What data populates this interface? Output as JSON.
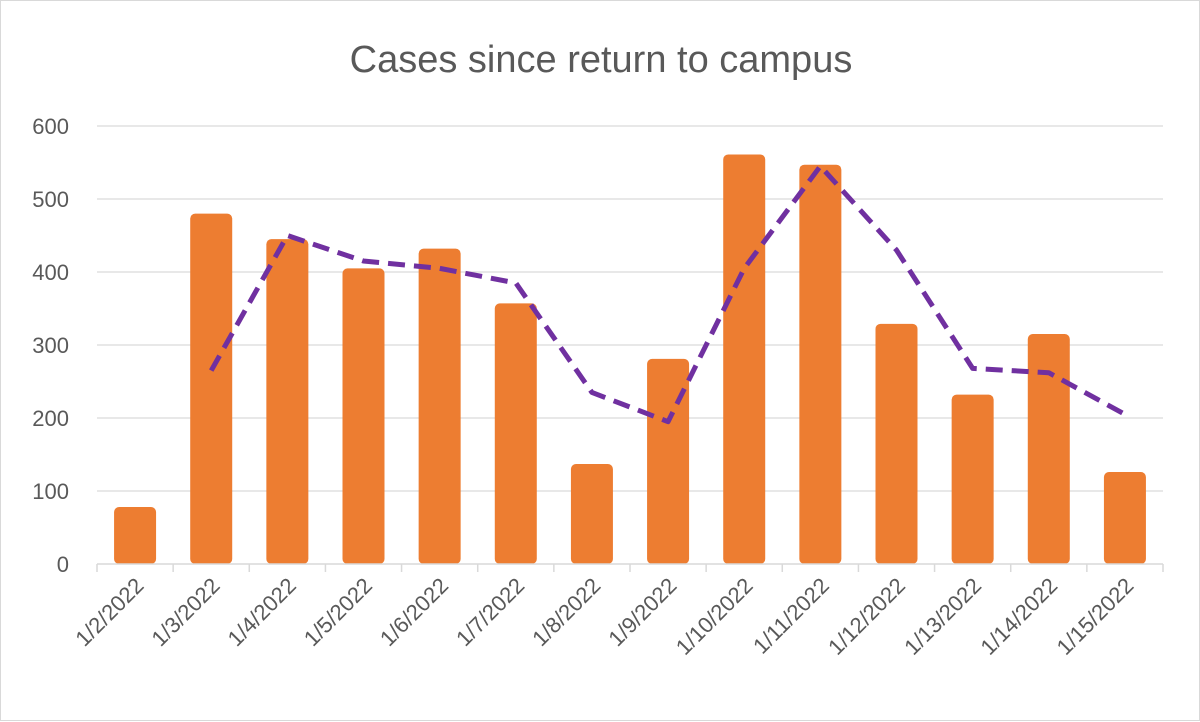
{
  "chart_data": {
    "type": "bar",
    "title": "Cases since return to campus",
    "xlabel": "",
    "ylabel": "",
    "categories": [
      "1/2/2022",
      "1/3/2022",
      "1/4/2022",
      "1/5/2022",
      "1/6/2022",
      "1/7/2022",
      "1/8/2022",
      "1/9/2022",
      "1/10/2022",
      "1/11/2022",
      "1/12/2022",
      "1/13/2022",
      "1/14/2022",
      "1/15/2022"
    ],
    "series": [
      {
        "type": "bar",
        "color": "#ED7D31",
        "values": [
          78,
          480,
          445,
          405,
          432,
          357,
          137,
          281,
          561,
          547,
          329,
          232,
          315,
          126
        ]
      },
      {
        "type": "line",
        "style": "dashed",
        "color": "#7030A0",
        "values": [
          null,
          265,
          450,
          415,
          405,
          385,
          235,
          195,
          405,
          545,
          430,
          268,
          262,
          205
        ]
      }
    ],
    "ylim": [
      0,
      600
    ],
    "yticks": [
      0,
      100,
      200,
      300,
      400,
      500,
      600
    ],
    "grid": true,
    "legend": "none"
  }
}
